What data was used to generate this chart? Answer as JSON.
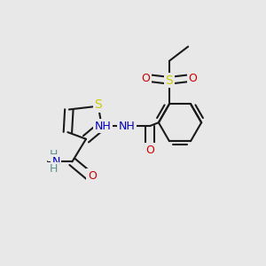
{
  "bg": "#e8e8e8",
  "bond_color": "#1a1a1a",
  "bond_lw": 1.5,
  "colors": {
    "S": "#cccc00",
    "N": "#0000bb",
    "O": "#cc0000",
    "C": "#1a1a1a",
    "H": "#5a9090"
  },
  "figsize": [
    3.0,
    3.0
  ],
  "dpi": 100
}
